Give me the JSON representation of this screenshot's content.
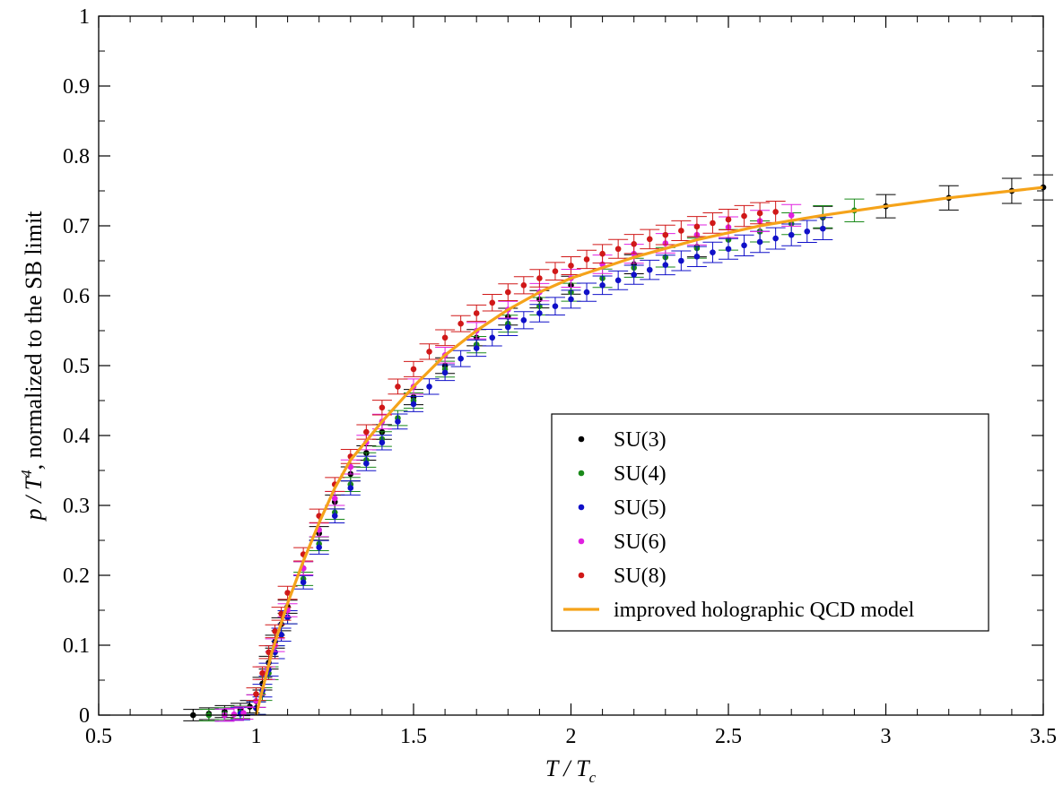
{
  "chart_data": {
    "type": "scatter",
    "xlabel": "T / T",
    "xlabel_sub": "c",
    "ylabel_pre": "p / T",
    "ylabel_sup": "4",
    "ylabel_post": ", normalized to the SB limit",
    "xlim": [
      0.5,
      3.5
    ],
    "ylim": [
      0,
      1
    ],
    "xticks": [
      "0.5",
      "1",
      "1.5",
      "2",
      "2.5",
      "3",
      "3.5"
    ],
    "yticks": [
      "0",
      "0.1",
      "0.2",
      "0.3",
      "0.4",
      "0.5",
      "0.6",
      "0.7",
      "0.8",
      "0.9",
      "1"
    ],
    "grid": false,
    "legend_position": "lower-right",
    "colors": {
      "SU(3)": "#000000",
      "SU(4)": "#1a8a1a",
      "SU(5)": "#1010c8",
      "SU(6)": "#e020e0",
      "SU(8)": "#d01818",
      "model": "#f5a31a"
    },
    "series": [
      {
        "name": "SU(3)",
        "x": [
          0.8,
          0.85,
          0.9,
          0.95,
          0.98,
          1.0,
          1.02,
          1.04,
          1.06,
          1.08,
          1.1,
          1.15,
          1.2,
          1.25,
          1.3,
          1.35,
          1.4,
          1.5,
          1.6,
          1.7,
          1.8,
          1.9,
          2.0,
          2.2,
          2.4,
          2.6,
          2.8,
          3.0,
          3.2,
          3.4,
          3.5
        ],
        "y": [
          0.0,
          0.002,
          0.005,
          0.008,
          0.012,
          0.02,
          0.045,
          0.075,
          0.105,
          0.13,
          0.155,
          0.21,
          0.26,
          0.305,
          0.345,
          0.375,
          0.405,
          0.455,
          0.5,
          0.54,
          0.57,
          0.595,
          0.615,
          0.645,
          0.67,
          0.692,
          0.712,
          0.728,
          0.74,
          0.75,
          0.755
        ]
      },
      {
        "name": "SU(4)",
        "x": [
          0.85,
          0.9,
          0.95,
          1.0,
          1.02,
          1.04,
          1.06,
          1.08,
          1.1,
          1.15,
          1.2,
          1.25,
          1.3,
          1.35,
          1.4,
          1.45,
          1.5,
          1.6,
          1.7,
          1.8,
          1.9,
          2.0,
          2.1,
          2.2,
          2.3,
          2.4,
          2.5,
          2.6,
          2.7,
          2.8,
          2.9
        ],
        "y": [
          0.0,
          0.002,
          0.004,
          0.01,
          0.03,
          0.06,
          0.09,
          0.115,
          0.14,
          0.195,
          0.245,
          0.29,
          0.33,
          0.365,
          0.395,
          0.425,
          0.45,
          0.495,
          0.53,
          0.56,
          0.585,
          0.605,
          0.625,
          0.64,
          0.655,
          0.668,
          0.68,
          0.692,
          0.703,
          0.713,
          0.722
        ]
      },
      {
        "name": "SU(5)",
        "x": [
          0.9,
          0.95,
          1.0,
          1.02,
          1.04,
          1.06,
          1.08,
          1.1,
          1.15,
          1.2,
          1.25,
          1.3,
          1.35,
          1.4,
          1.45,
          1.5,
          1.55,
          1.6,
          1.65,
          1.7,
          1.75,
          1.8,
          1.85,
          1.9,
          1.95,
          2.0,
          2.05,
          2.1,
          2.15,
          2.2,
          2.25,
          2.3,
          2.35,
          2.4,
          2.45,
          2.5,
          2.55,
          2.6,
          2.65,
          2.7,
          2.75,
          2.8
        ],
        "y": [
          0.0,
          0.002,
          0.01,
          0.035,
          0.065,
          0.09,
          0.115,
          0.14,
          0.19,
          0.24,
          0.285,
          0.325,
          0.36,
          0.39,
          0.42,
          0.445,
          0.47,
          0.49,
          0.51,
          0.525,
          0.54,
          0.555,
          0.565,
          0.575,
          0.585,
          0.595,
          0.605,
          0.615,
          0.622,
          0.63,
          0.637,
          0.644,
          0.65,
          0.656,
          0.662,
          0.667,
          0.672,
          0.677,
          0.682,
          0.687,
          0.692,
          0.696
        ]
      },
      {
        "name": "SU(6)",
        "x": [
          0.9,
          0.93,
          0.96,
          1.0,
          1.03,
          1.06,
          1.1,
          1.15,
          1.2,
          1.25,
          1.3,
          1.35,
          1.4,
          1.5,
          1.6,
          1.7,
          1.8,
          1.9,
          2.0,
          2.1,
          2.2,
          2.3,
          2.4,
          2.5,
          2.6,
          2.7
        ],
        "y": [
          0.0,
          0.001,
          0.003,
          0.02,
          0.06,
          0.1,
          0.15,
          0.21,
          0.265,
          0.31,
          0.355,
          0.39,
          0.42,
          0.47,
          0.515,
          0.55,
          0.58,
          0.605,
          0.625,
          0.645,
          0.66,
          0.675,
          0.687,
          0.698,
          0.707,
          0.715
        ]
      },
      {
        "name": "SU(8)",
        "x": [
          1.0,
          1.02,
          1.04,
          1.06,
          1.08,
          1.1,
          1.15,
          1.2,
          1.25,
          1.3,
          1.35,
          1.4,
          1.45,
          1.5,
          1.55,
          1.6,
          1.65,
          1.7,
          1.75,
          1.8,
          1.85,
          1.9,
          1.95,
          2.0,
          2.05,
          2.1,
          2.15,
          2.2,
          2.25,
          2.3,
          2.35,
          2.4,
          2.45,
          2.5,
          2.55,
          2.6,
          2.65
        ],
        "y": [
          0.03,
          0.06,
          0.09,
          0.12,
          0.145,
          0.175,
          0.23,
          0.285,
          0.33,
          0.37,
          0.405,
          0.44,
          0.47,
          0.495,
          0.52,
          0.54,
          0.56,
          0.575,
          0.59,
          0.605,
          0.615,
          0.625,
          0.635,
          0.643,
          0.652,
          0.66,
          0.667,
          0.674,
          0.681,
          0.687,
          0.693,
          0.699,
          0.704,
          0.709,
          0.714,
          0.718,
          0.72
        ]
      },
      {
        "name": "improved holographic QCD model",
        "style": "line",
        "x": [
          1.0,
          1.05,
          1.1,
          1.15,
          1.2,
          1.25,
          1.3,
          1.35,
          1.4,
          1.5,
          1.6,
          1.7,
          1.8,
          1.9,
          2.0,
          2.2,
          2.4,
          2.6,
          2.8,
          3.0,
          3.2,
          3.4,
          3.5
        ],
        "y": [
          0.0,
          0.09,
          0.16,
          0.22,
          0.275,
          0.325,
          0.365,
          0.392,
          0.42,
          0.47,
          0.515,
          0.55,
          0.58,
          0.605,
          0.625,
          0.655,
          0.68,
          0.7,
          0.715,
          0.728,
          0.74,
          0.75,
          0.755
        ]
      }
    ]
  }
}
